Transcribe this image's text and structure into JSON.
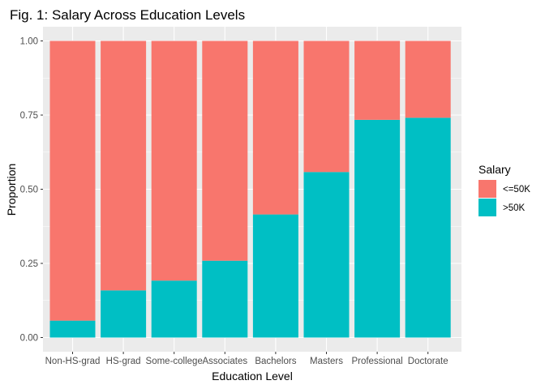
{
  "chart_data": {
    "type": "bar",
    "stacked": true,
    "title": "Fig. 1: Salary Across Education Levels",
    "xlabel": "Education Level",
    "ylabel": "Proportion",
    "ylim": [
      0,
      1
    ],
    "yticks": [
      "0.00",
      "0.25",
      "0.50",
      "0.75",
      "1.00"
    ],
    "ytick_values": [
      0,
      0.25,
      0.5,
      0.75,
      1
    ],
    "categories": [
      "Non-HS-grad",
      "HS-grad",
      "Some-college",
      "Associates",
      "Bachelors",
      "Masters",
      "Professional",
      "Doctorate"
    ],
    "series": [
      {
        "name": "<=50K",
        "color": "#F8766D",
        "values": [
          0.943,
          0.841,
          0.808,
          0.741,
          0.585,
          0.442,
          0.266,
          0.259
        ]
      },
      {
        "name": ">50K",
        "color": "#00BFC4",
        "values": [
          0.057,
          0.159,
          0.192,
          0.259,
          0.415,
          0.558,
          0.734,
          0.741
        ]
      }
    ],
    "legend": {
      "title": "Salary",
      "position": "right"
    },
    "grid": true,
    "panel_background": "#EBEBEB"
  }
}
